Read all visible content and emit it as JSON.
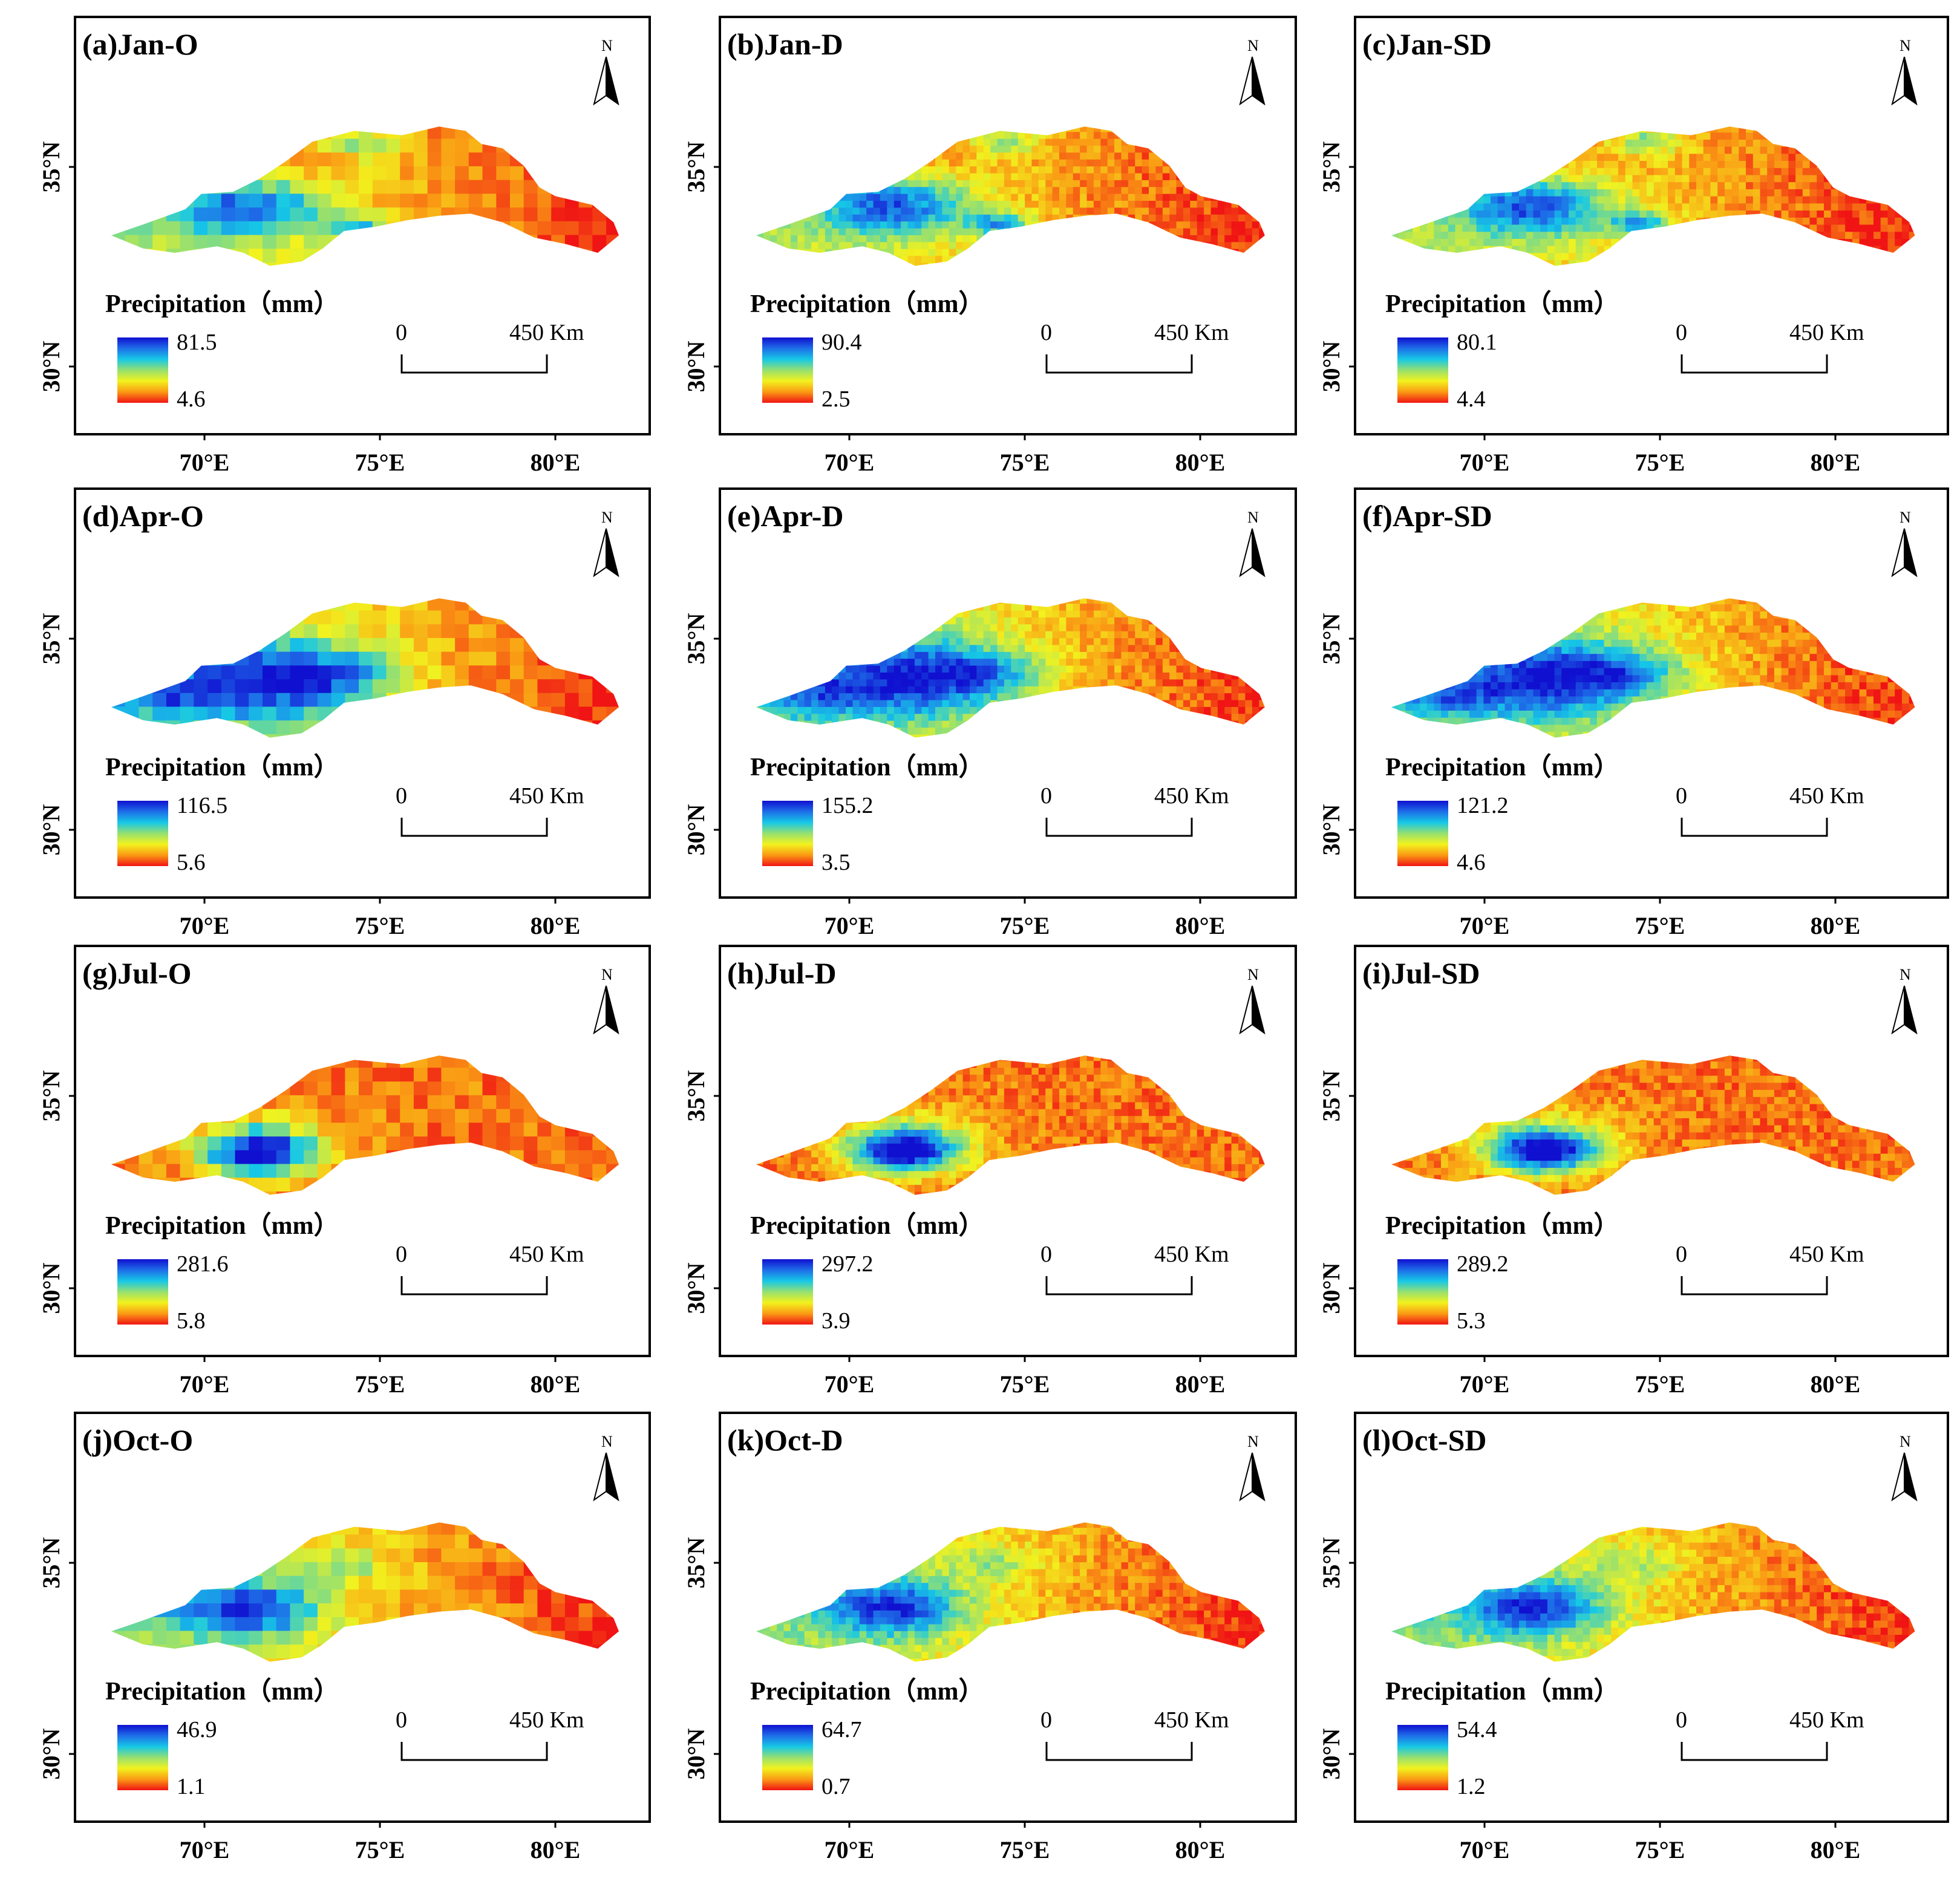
{
  "figure": {
    "legend_title": "Precipitation（mm）",
    "scale_zero": "0",
    "scale_dist": "450 Km",
    "north": "N",
    "lon_ticks": [
      "70°E",
      "75°E",
      "80°E"
    ],
    "lat_ticks": [
      "35°N",
      "30°N"
    ],
    "colormap": [
      "#1010d0",
      "#1e6ee8",
      "#16c8e6",
      "#96e070",
      "#f2f21e",
      "#fa9a14",
      "#f01414"
    ]
  },
  "panels": [
    {
      "id": "a",
      "title": "(a)Jan-O",
      "max": "81.5",
      "min": "4.6",
      "style": "O",
      "month": "Jan"
    },
    {
      "id": "b",
      "title": "(b)Jan-D",
      "max": "90.4",
      "min": "2.5",
      "style": "D",
      "month": "Jan"
    },
    {
      "id": "c",
      "title": "(c)Jan-SD",
      "max": "80.1",
      "min": "4.4",
      "style": "SD",
      "month": "Jan"
    },
    {
      "id": "d",
      "title": "(d)Apr-O",
      "max": "116.5",
      "min": "5.6",
      "style": "O",
      "month": "Apr"
    },
    {
      "id": "e",
      "title": "(e)Apr-D",
      "max": "155.2",
      "min": "3.5",
      "style": "D",
      "month": "Apr"
    },
    {
      "id": "f",
      "title": "(f)Apr-SD",
      "max": "121.2",
      "min": "4.6",
      "style": "SD",
      "month": "Apr"
    },
    {
      "id": "g",
      "title": "(g)Jul-O",
      "max": "281.6",
      "min": "5.8",
      "style": "O",
      "month": "Jul"
    },
    {
      "id": "h",
      "title": "(h)Jul-D",
      "max": "297.2",
      "min": "3.9",
      "style": "D",
      "month": "Jul"
    },
    {
      "id": "i",
      "title": "(i)Jul-SD",
      "max": "289.2",
      "min": "5.3",
      "style": "SD",
      "month": "Jul"
    },
    {
      "id": "j",
      "title": "(j)Oct-O",
      "max": "46.9",
      "min": "1.1",
      "style": "O",
      "month": "Oct"
    },
    {
      "id": "k",
      "title": "(k)Oct-D",
      "max": "64.7",
      "min": "0.7",
      "style": "D",
      "month": "Oct"
    },
    {
      "id": "l",
      "title": "(l)Oct-SD",
      "max": "54.4",
      "min": "1.2",
      "style": "SD",
      "month": "Oct"
    }
  ]
}
